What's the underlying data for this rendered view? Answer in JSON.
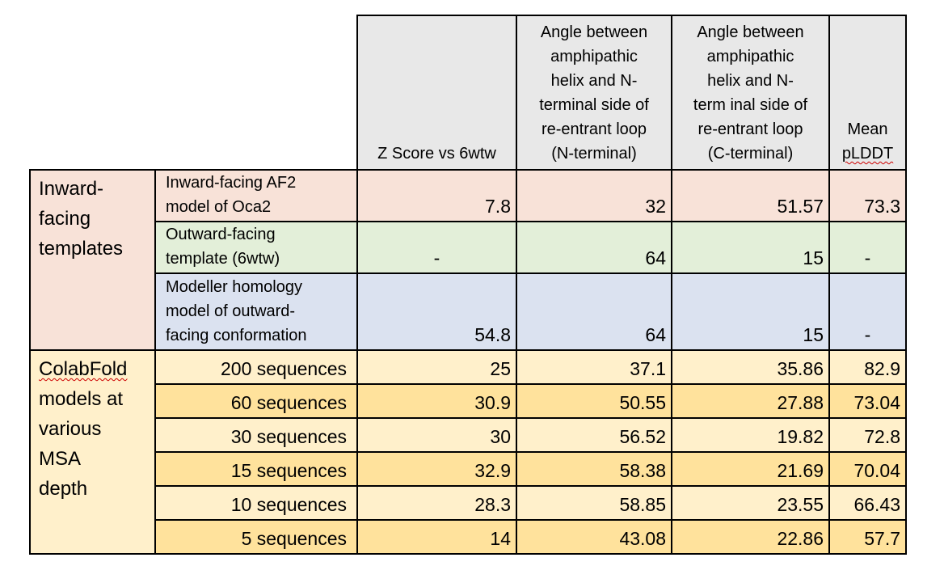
{
  "headers": {
    "zscore": "Z Score vs 6wtw",
    "angle_n": [
      "Angle between",
      "amphipathic",
      "helix and N-",
      "terminal side of",
      "re-entrant loop",
      "(N-terminal)"
    ],
    "angle_c": [
      "Angle between",
      "amphipathic",
      "helix and N-",
      "term inal side of",
      "re-entrant loop",
      "(C-terminal)"
    ],
    "plddt": [
      "Mean",
      "pLDDT"
    ]
  },
  "groups": {
    "inward": [
      "Inward-",
      "facing",
      "templates"
    ],
    "colab": [
      "ColabFold",
      "models at",
      "various",
      "MSA",
      "depth"
    ]
  },
  "template_rows": [
    {
      "label": [
        "Inward-facing AF2",
        "model of Oca2"
      ],
      "z": "7.8",
      "an": "32",
      "ac": "51.57",
      "pl": "73.3"
    },
    {
      "label": [
        "Outward-facing",
        "template (6wtw)"
      ],
      "z": "-",
      "an": "64",
      "ac": "15",
      "pl": "-"
    },
    {
      "label": [
        "Modeller homology",
        "model of outward-",
        "facing conformation"
      ],
      "z": "54.8",
      "an": "64",
      "ac": "15",
      "pl": "-"
    }
  ],
  "msa_rows": [
    {
      "label": "200 sequences",
      "z": "25",
      "an": "37.1",
      "ac": "35.86",
      "pl": "82.9"
    },
    {
      "label": "60 sequences",
      "z": "30.9",
      "an": "50.55",
      "ac": "27.88",
      "pl": "73.04"
    },
    {
      "label": "30 sequences",
      "z": "30",
      "an": "56.52",
      "ac": "19.82",
      "pl": "72.8"
    },
    {
      "label": "15 sequences",
      "z": "32.9",
      "an": "58.38",
      "ac": "21.69",
      "pl": "70.04"
    },
    {
      "label": "10 sequences",
      "z": "28.3",
      "an": "58.85",
      "ac": "23.55",
      "pl": "66.43"
    },
    {
      "label": "5 sequences",
      "z": "14",
      "an": "43.08",
      "ac": "22.86",
      "pl": "57.7"
    }
  ],
  "colors": {
    "header_bg": "#e8e8e8",
    "inward_pink": "#f8e2d8",
    "outward_green": "#e3efd9",
    "modeller_blue": "#dbe2f0",
    "colab_light_yellow": "#fff0cb",
    "colab_dark_yellow": "#ffe29c"
  }
}
